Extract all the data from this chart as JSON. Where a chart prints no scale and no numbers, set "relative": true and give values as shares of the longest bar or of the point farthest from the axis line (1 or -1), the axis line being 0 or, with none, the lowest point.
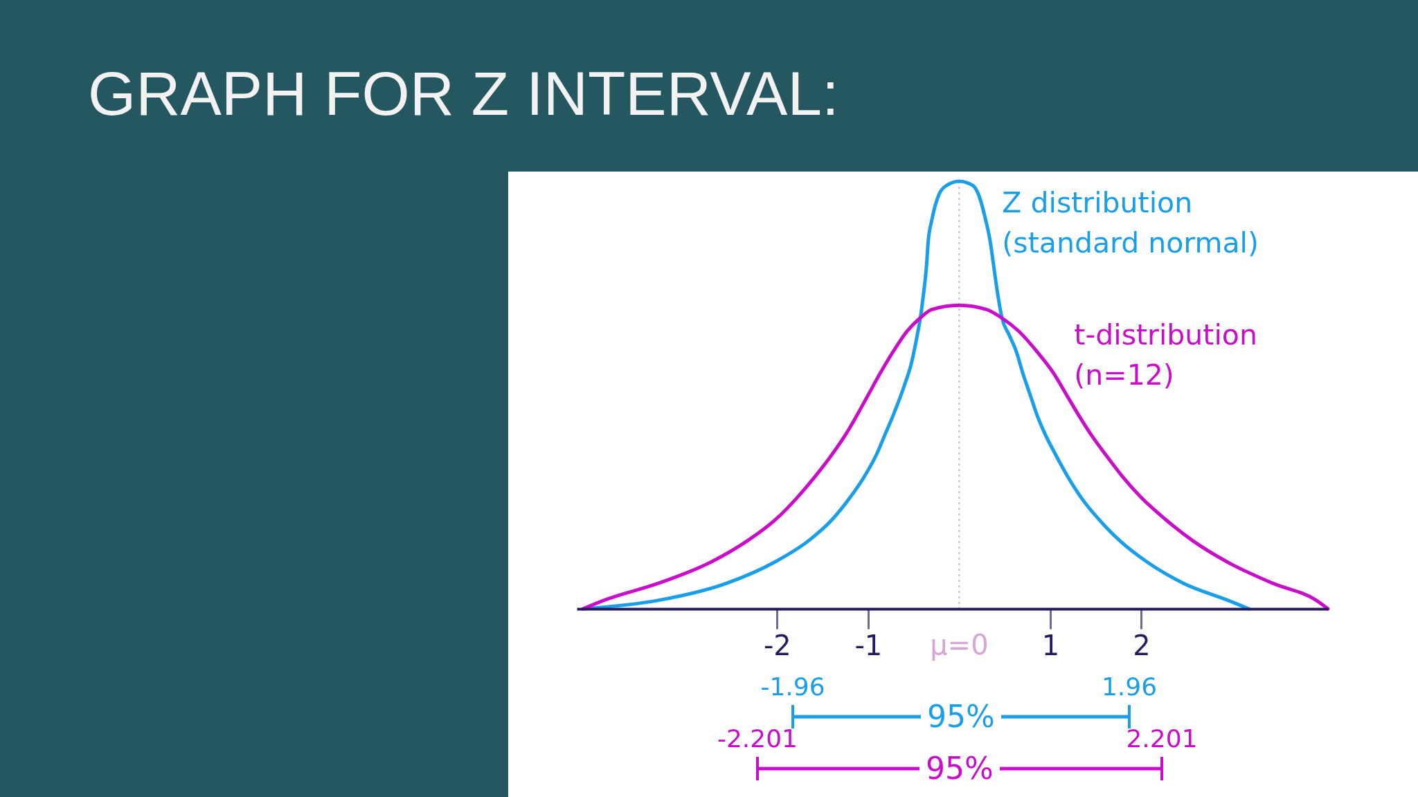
{
  "chart_data": {
    "type": "line",
    "title": "GRAPH FOR Z INTERVAL:",
    "relative": true,
    "xlim": [
      -4.2,
      4.05
    ],
    "xticks": [
      -2,
      -1,
      1,
      2
    ],
    "series": [
      {
        "name": "Z distribution (standard normal)",
        "color": "#1a9ee8",
        "x": [
          -4.13,
          -3.3,
          -2.55,
          -2.02,
          -1.65,
          -1.39,
          -1.2,
          -1.04,
          -0.91,
          -0.81,
          -0.73,
          -0.59,
          -0.53,
          -0.47,
          -0.42,
          -0.39,
          -0.36,
          -0.34,
          -0.3,
          -0.22,
          -0.14,
          0,
          0.15,
          0.21,
          0.29,
          0.34,
          0.38,
          0.42,
          0.47,
          0.55,
          0.63,
          0.7,
          0.78,
          0.86,
          0.94,
          1.06,
          1.19,
          1.34,
          1.53,
          1.76,
          2.06,
          2.46,
          2.95,
          3.18
        ],
        "values": [
          0,
          0.02,
          0.06,
          0.11,
          0.16,
          0.21,
          0.26,
          0.31,
          0.36,
          0.41,
          0.45,
          0.53,
          0.57,
          0.63,
          0.69,
          0.74,
          0.8,
          0.86,
          0.91,
          0.97,
          0.99,
          1.0,
          0.99,
          0.97,
          0.91,
          0.86,
          0.8,
          0.74,
          0.68,
          0.64,
          0.6,
          0.55,
          0.5,
          0.45,
          0.41,
          0.36,
          0.31,
          0.26,
          0.21,
          0.16,
          0.11,
          0.06,
          0.02,
          0
        ]
      },
      {
        "name": "t-distribution (n=12)",
        "color": "#c90ec9",
        "x": [
          -4.13,
          -3.9,
          -3.3,
          -2.72,
          -2.32,
          -2.01,
          -1.78,
          -1.58,
          -1.4,
          -1.24,
          -1.13,
          -1.0,
          -0.87,
          -0.73,
          -0.57,
          -0.43,
          -0.3,
          0,
          0.3,
          0.47,
          0.65,
          0.86,
          1.04,
          1.18,
          1.32,
          1.44,
          1.61,
          1.79,
          2.0,
          2.26,
          2.56,
          2.94,
          3.44,
          3.92,
          4.05
        ],
        "values": [
          0,
          0.02,
          0.06,
          0.11,
          0.16,
          0.21,
          0.26,
          0.31,
          0.36,
          0.41,
          0.45,
          0.5,
          0.55,
          0.6,
          0.65,
          0.68,
          0.7,
          0.71,
          0.7,
          0.68,
          0.65,
          0.6,
          0.55,
          0.5,
          0.45,
          0.41,
          0.36,
          0.31,
          0.26,
          0.21,
          0.16,
          0.11,
          0.06,
          0.02,
          0
        ]
      }
    ],
    "ref_lines": [
      {
        "axis": "x",
        "value": 0,
        "label": "μ=0",
        "color": "#d6a6d6",
        "line_style": "dotted"
      }
    ],
    "annotations": [
      "-1.96",
      "1.96",
      "95%",
      "-2.201",
      "2.201",
      "95%"
    ]
  }
}
